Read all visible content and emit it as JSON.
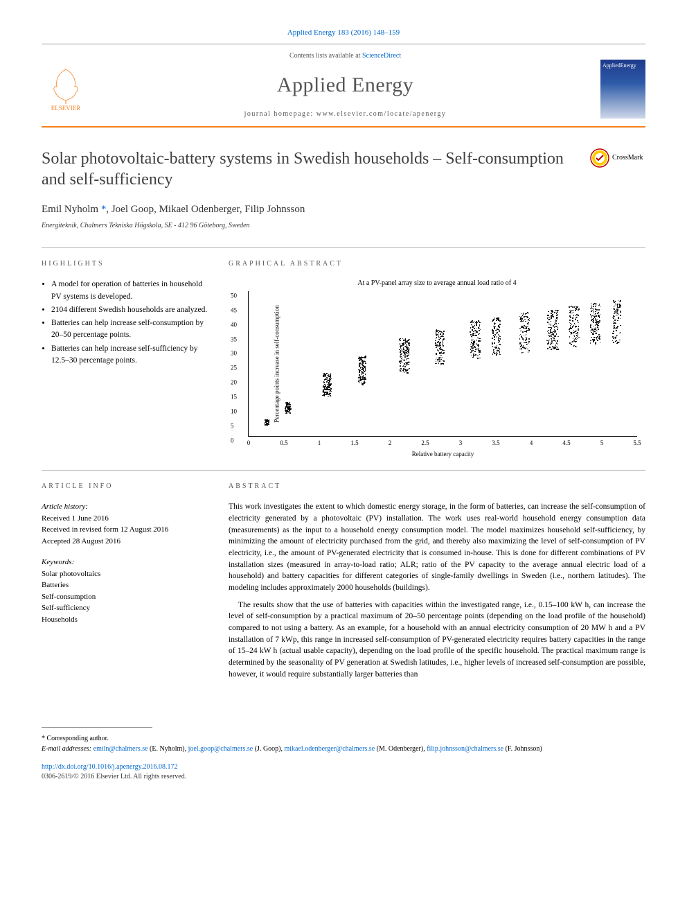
{
  "citation": "Applied Energy 183 (2016) 148–159",
  "header": {
    "publisher": "ELSEVIER",
    "contents_prefix": "Contents lists available at ",
    "contents_link": "ScienceDirect",
    "journal": "Applied Energy",
    "homepage_prefix": "journal homepage: ",
    "homepage": "www.elsevier.com/locate/apenergy",
    "cover_label": "AppliedEnergy"
  },
  "crossmark": "CrossMark",
  "title": "Solar photovoltaic-battery systems in Swedish households – Self-consumption and self-sufficiency",
  "authors_raw": "Emil Nyholm *, Joel Goop, Mikael Odenberger, Filip Johnsson",
  "authors": [
    {
      "name": "Emil Nyholm",
      "corr": true
    },
    {
      "name": "Joel Goop",
      "corr": false
    },
    {
      "name": "Mikael Odenberger",
      "corr": false
    },
    {
      "name": "Filip Johnsson",
      "corr": false
    }
  ],
  "affiliation": "Energiteknik, Chalmers Tekniska Högskola, SE - 412 96 Göteborg, Sweden",
  "highlights_heading": "HIGHLIGHTS",
  "highlights": [
    "A model for operation of batteries in household PV systems is developed.",
    "2104 different Swedish households are analyzed.",
    "Batteries can help increase self-consumption by 20–50 percentage points.",
    "Batteries can help increase self-sufficiency by 12.5–30 percentage points."
  ],
  "graphical_heading": "GRAPHICAL ABSTRACT",
  "chart": {
    "type": "scatter",
    "title": "At a PV-panel array size to average annual load ratio of 4",
    "xlabel": "Relative battery capacity",
    "ylabel": "Percentage points increase in self-consumption",
    "xlim": [
      0,
      5.5
    ],
    "ylim": [
      0,
      50
    ],
    "xticks": [
      0,
      0.5,
      1,
      1.5,
      2,
      2.5,
      3,
      3.5,
      4,
      4.5,
      5,
      5.5
    ],
    "yticks": [
      0,
      5,
      10,
      15,
      20,
      25,
      30,
      35,
      40,
      45,
      50
    ],
    "point_color": "#000000",
    "background": "#ffffff",
    "clusters": [
      {
        "x": 0.25,
        "ylo": 4,
        "yhi": 6,
        "n": 40,
        "xspread": 0.03
      },
      {
        "x": 0.55,
        "ylo": 8,
        "yhi": 12,
        "n": 80,
        "xspread": 0.04
      },
      {
        "x": 1.1,
        "ylo": 14,
        "yhi": 22,
        "n": 160,
        "xspread": 0.06
      },
      {
        "x": 1.6,
        "ylo": 18,
        "yhi": 28,
        "n": 140,
        "xspread": 0.05
      },
      {
        "x": 2.2,
        "ylo": 22,
        "yhi": 34,
        "n": 160,
        "xspread": 0.07
      },
      {
        "x": 2.7,
        "ylo": 25,
        "yhi": 37,
        "n": 120,
        "xspread": 0.06
      },
      {
        "x": 3.2,
        "ylo": 27,
        "yhi": 40,
        "n": 140,
        "xspread": 0.07
      },
      {
        "x": 3.5,
        "ylo": 28,
        "yhi": 41,
        "n": 100,
        "xspread": 0.06
      },
      {
        "x": 3.9,
        "ylo": 29,
        "yhi": 43,
        "n": 120,
        "xspread": 0.07
      },
      {
        "x": 4.3,
        "ylo": 30,
        "yhi": 44,
        "n": 160,
        "xspread": 0.08
      },
      {
        "x": 4.6,
        "ylo": 31,
        "yhi": 45,
        "n": 120,
        "xspread": 0.07
      },
      {
        "x": 4.9,
        "ylo": 32,
        "yhi": 46,
        "n": 140,
        "xspread": 0.07
      },
      {
        "x": 5.2,
        "ylo": 32,
        "yhi": 47,
        "n": 100,
        "xspread": 0.06
      }
    ]
  },
  "info_heading": "ARTICLE INFO",
  "history_label": "Article history:",
  "history": [
    "Received 1 June 2016",
    "Received in revised form 12 August 2016",
    "Accepted 28 August 2016"
  ],
  "keywords_label": "Keywords:",
  "keywords": [
    "Solar photovoltaics",
    "Batteries",
    "Self-consumption",
    "Self-sufficiency",
    "Households"
  ],
  "abstract_heading": "ABSTRACT",
  "abstract": [
    "This work investigates the extent to which domestic energy storage, in the form of batteries, can increase the self-consumption of electricity generated by a photovoltaic (PV) installation. The work uses real-world household energy consumption data (measurements) as the input to a household energy consumption model. The model maximizes household self-sufficiency, by minimizing the amount of electricity purchased from the grid, and thereby also maximizing the level of self-consumption of PV electricity, i.e., the amount of PV-generated electricity that is consumed in-house. This is done for different combinations of PV installation sizes (measured in array-to-load ratio; ALR; ratio of the PV capacity to the average annual electric load of a household) and battery capacities for different categories of single-family dwellings in Sweden (i.e., northern latitudes). The modeling includes approximately 2000 households (buildings).",
    "The results show that the use of batteries with capacities within the investigated range, i.e., 0.15–100 kW h, can increase the level of self-consumption by a practical maximum of 20–50 percentage points (depending on the load profile of the household) compared to not using a battery. As an example, for a household with an annual electricity consumption of 20 MW h and a PV installation of 7 kWp, this range in increased self-consumption of PV-generated electricity requires battery capacities in the range of 15–24 kW h (actual usable capacity), depending on the load profile of the specific household. The practical maximum range is determined by the seasonality of PV generation at Swedish latitudes, i.e., higher levels of increased self-consumption are possible, however, it would require substantially larger batteries than"
  ],
  "corr_note": "* Corresponding author.",
  "emails_label": "E-mail addresses:",
  "emails": [
    {
      "addr": "emiln@chalmers.se",
      "who": "(E. Nyholm)"
    },
    {
      "addr": "joel.goop@chalmers.se",
      "who": "(J. Goop)"
    },
    {
      "addr": "mikael.odenberger@chalmers.se",
      "who": "(M. Odenberger)"
    },
    {
      "addr": "filip.johnsson@chalmers.se",
      "who": "(F. Johnsson)"
    }
  ],
  "doi": "http://dx.doi.org/10.1016/j.apenergy.2016.08.172",
  "issn_copyright": "0306-2619/© 2016 Elsevier Ltd. All rights reserved."
}
